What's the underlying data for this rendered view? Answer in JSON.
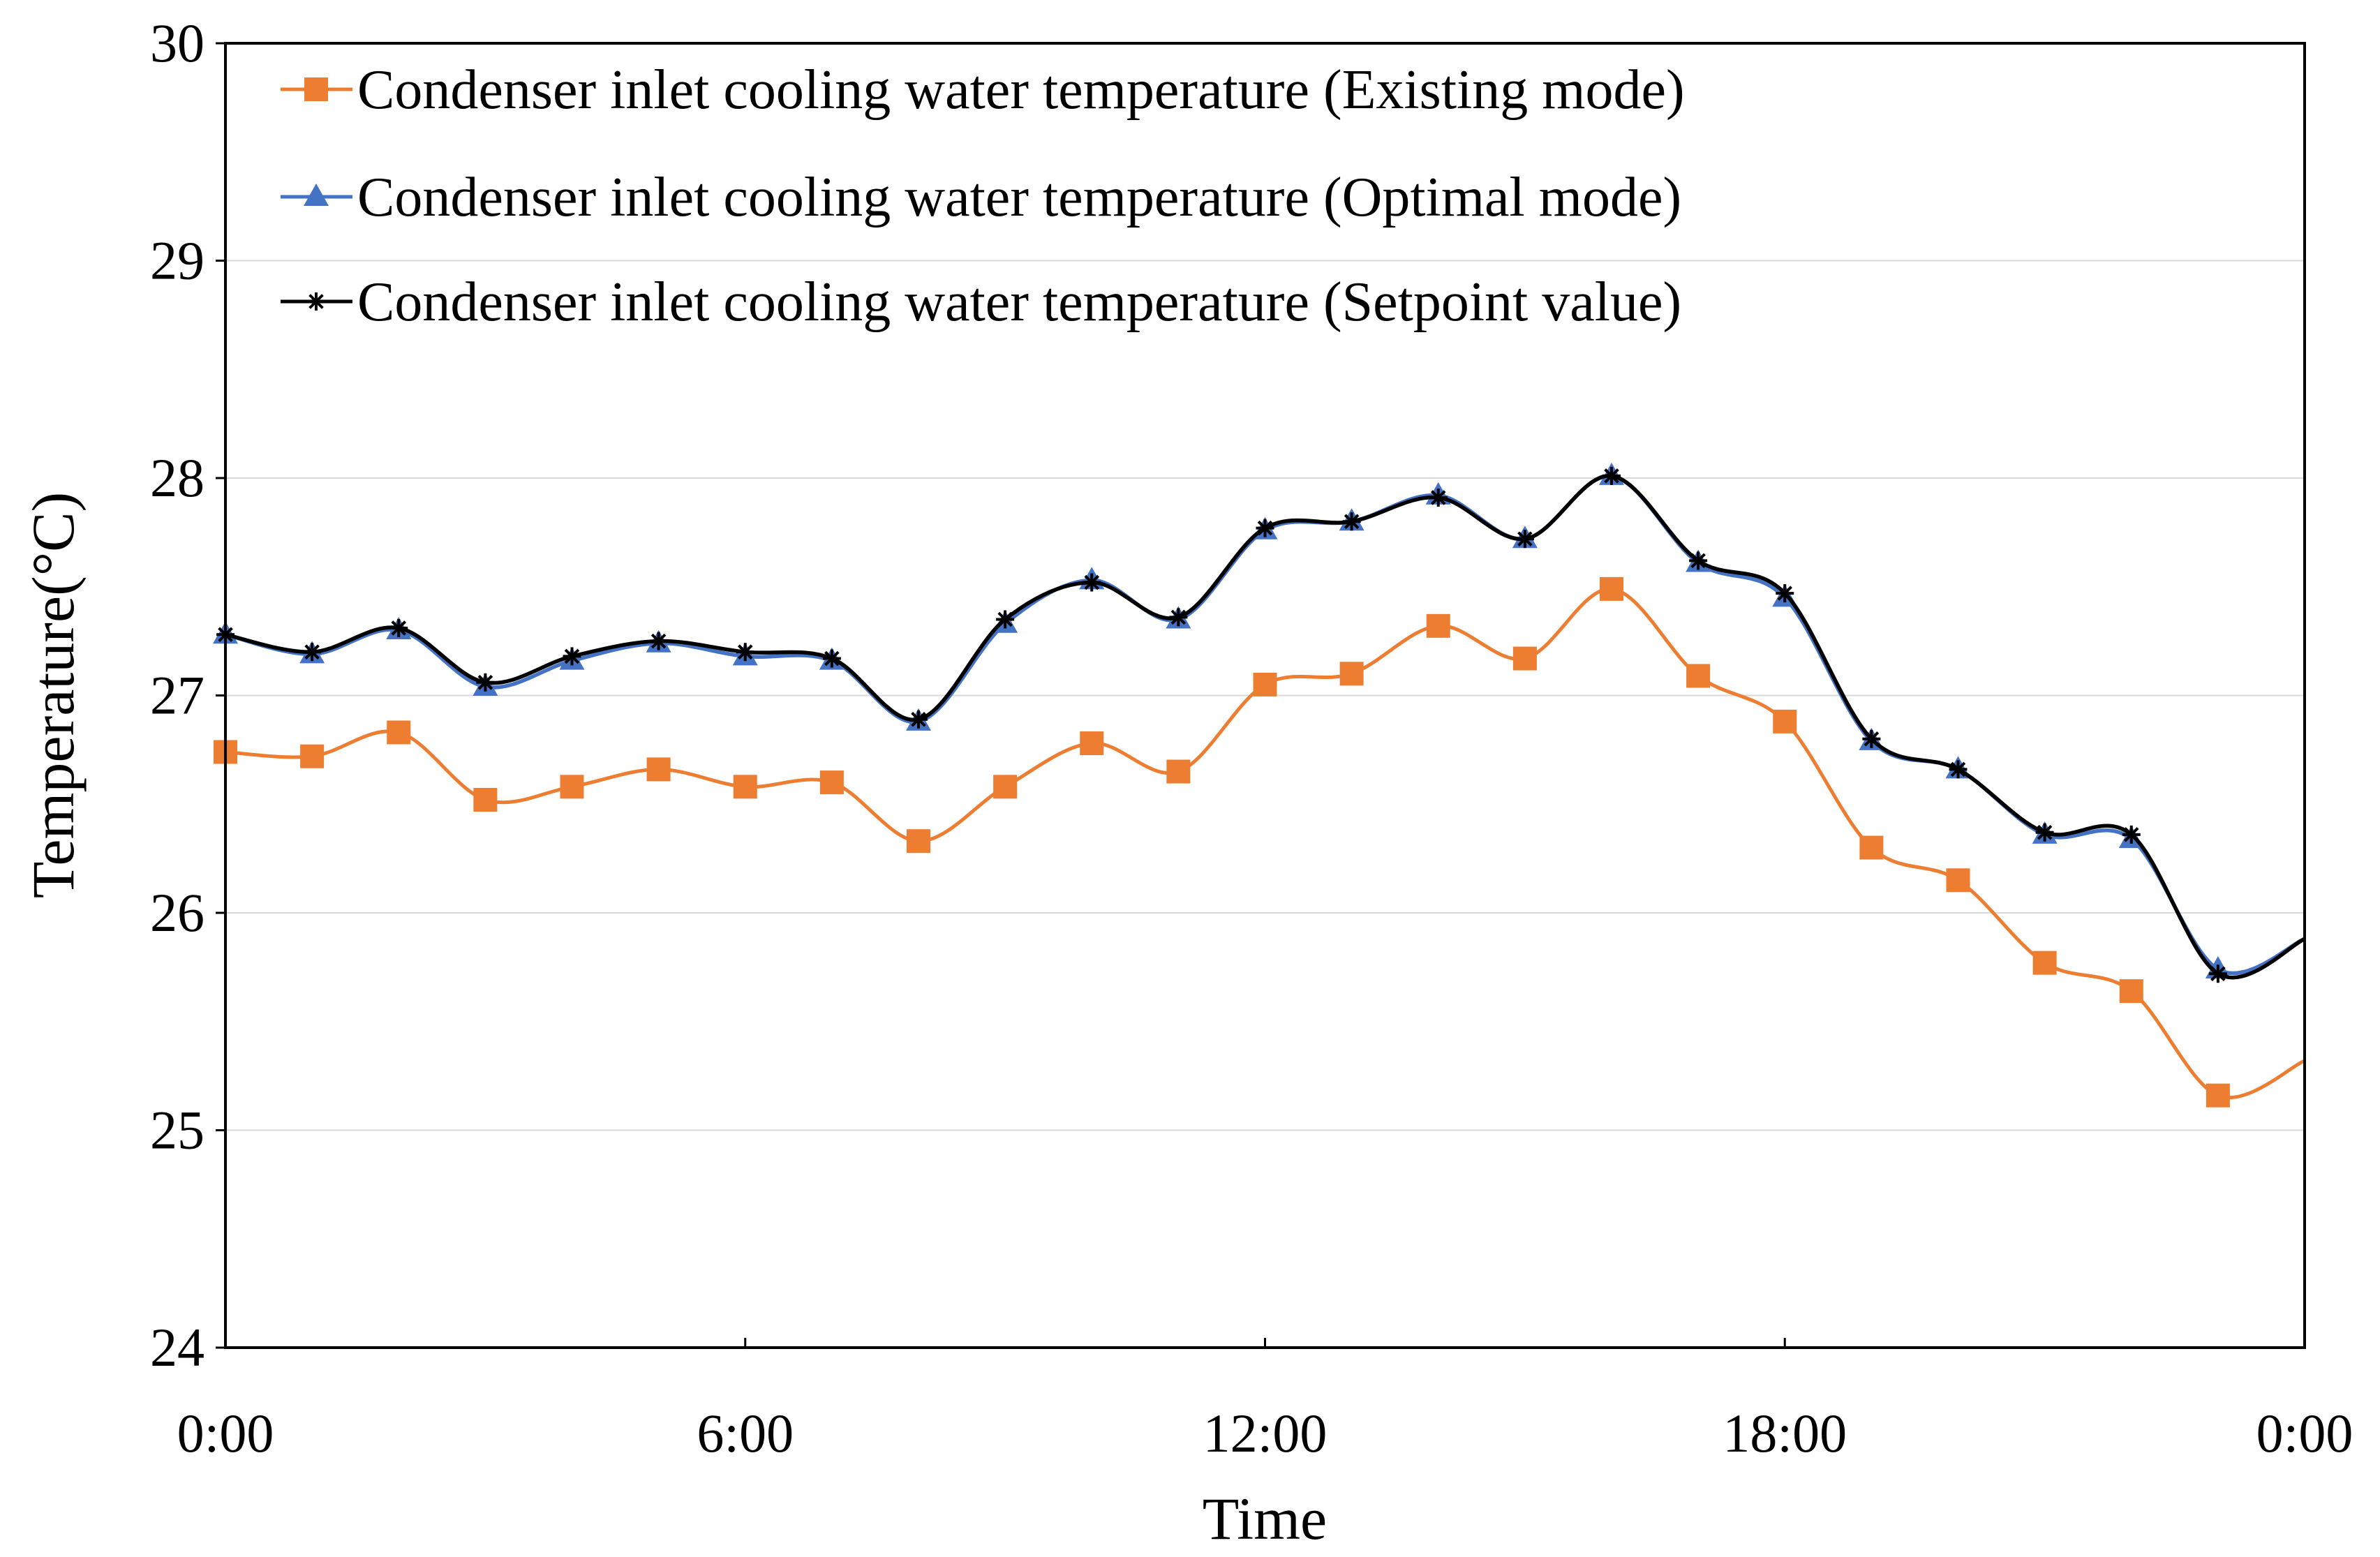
{
  "chart_data": {
    "type": "line",
    "title": "",
    "xlabel": "Time",
    "ylabel": "Temperature(°C)",
    "ylim": [
      24,
      30
    ],
    "yticks": [
      "24",
      "25",
      "26",
      "27",
      "28",
      "29",
      "30"
    ],
    "xlim_hours": [
      0,
      24
    ],
    "xticks": [
      {
        "hour": 0,
        "label": "0:00"
      },
      {
        "hour": 6,
        "label": "6:00"
      },
      {
        "hour": 12,
        "label": "12:00"
      },
      {
        "hour": 18,
        "label": "18:00"
      },
      {
        "hour": 24,
        "label": "0:00"
      }
    ],
    "grid": "horizontal",
    "legend_position": "top-left",
    "x_hours": [
      0,
      1,
      2,
      3,
      4,
      5,
      6,
      7,
      8,
      9,
      10,
      11,
      12,
      13,
      14,
      15,
      16,
      17,
      18,
      19,
      20,
      21,
      22,
      23,
      24
    ],
    "series": [
      {
        "name": "Condenser inlet cooling water temperature (Existing mode)",
        "color": "#ED7D31",
        "marker": "square",
        "values": [
          26.74,
          26.72,
          26.83,
          26.52,
          26.58,
          26.66,
          26.58,
          26.6,
          26.33,
          26.58,
          26.78,
          26.65,
          27.05,
          27.1,
          27.32,
          27.17,
          27.49,
          27.09,
          26.88,
          26.3,
          26.15,
          25.77,
          25.64,
          25.16,
          25.32
        ]
      },
      {
        "name": "Condenser inlet cooling water temperature (Optimal mode)",
        "color": "#4472C4",
        "marker": "triangle",
        "values": [
          27.28,
          27.19,
          27.3,
          27.04,
          27.16,
          27.24,
          27.18,
          27.16,
          26.88,
          27.33,
          27.53,
          27.35,
          27.76,
          27.8,
          27.92,
          27.72,
          28.01,
          27.61,
          27.45,
          26.79,
          26.66,
          26.36,
          26.34,
          25.74,
          25.88
        ]
      },
      {
        "name": "Condenser inlet cooling water temperature (Setpoint value)",
        "color": "#000000",
        "marker": "star",
        "values": [
          27.28,
          27.2,
          27.31,
          27.06,
          27.18,
          27.25,
          27.2,
          27.17,
          26.89,
          27.35,
          27.52,
          27.36,
          27.77,
          27.8,
          27.91,
          27.72,
          28.01,
          27.62,
          27.47,
          26.8,
          26.66,
          26.37,
          26.36,
          25.72,
          25.88
        ]
      }
    ]
  }
}
